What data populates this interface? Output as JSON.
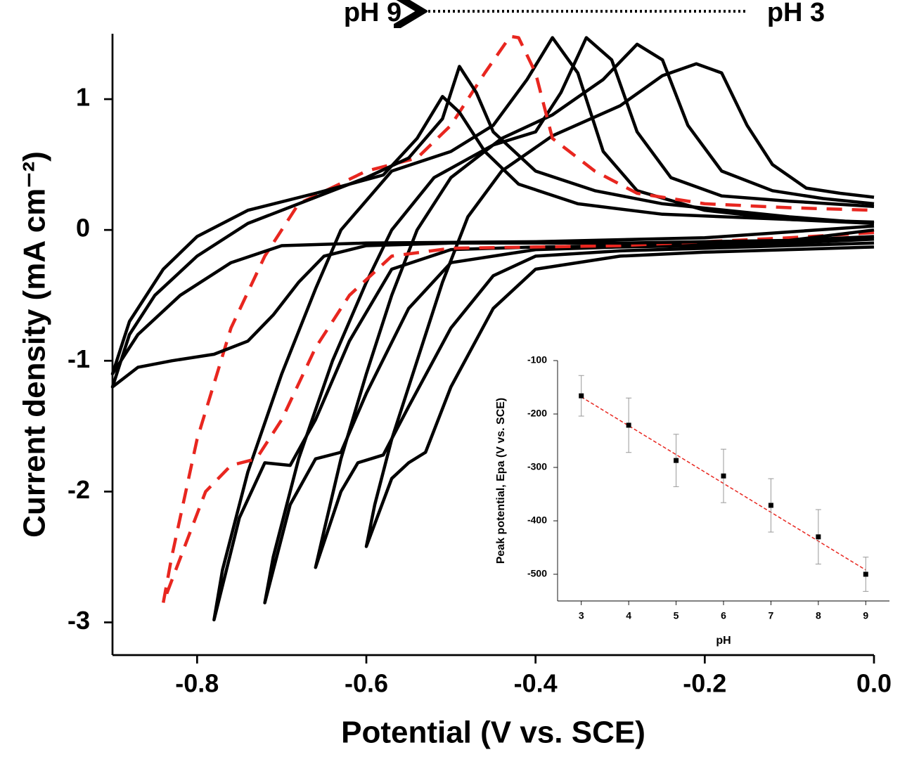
{
  "chart_data": [
    {
      "type": "line",
      "xlabel": "Potential (V vs. SCE)",
      "ylabel": "Current density (mA cm⁻²)",
      "annotations": [
        "pH 9",
        "pH 3"
      ],
      "xlim": [
        -0.9,
        0.0
      ],
      "ylim": [
        -3.25,
        1.5
      ],
      "xticks": [
        -0.8,
        -0.6,
        -0.4,
        -0.2,
        {
          "value": 0,
          "label": "0.0"
        }
      ],
      "yticks": [
        -3,
        -2,
        -1,
        0,
        1
      ],
      "series": [
        {
          "color": "#000000",
          "line_style": "solid",
          "x": [
            0,
            -0.1,
            -0.2,
            -0.3,
            -0.4,
            -0.45,
            -0.5,
            -0.53,
            -0.55,
            -0.57,
            -0.6,
            -0.59,
            -0.57,
            -0.54,
            -0.51,
            -0.48,
            -0.44,
            -0.38,
            -0.3,
            -0.25,
            -0.21,
            -0.18,
            -0.15,
            -0.12,
            -0.08,
            -0.04,
            0
          ],
          "values": [
            -0.13,
            -0.15,
            -0.17,
            -0.2,
            -0.3,
            -0.6,
            -1.2,
            -1.7,
            -1.78,
            -1.9,
            -2.42,
            -2.1,
            -1.6,
            -1.0,
            -0.4,
            0.1,
            0.45,
            0.72,
            0.95,
            1.18,
            1.27,
            1.2,
            0.8,
            0.5,
            0.32,
            0.28,
            0.25
          ]
        },
        {
          "color": "#000000",
          "line_style": "solid",
          "x": [
            0,
            -0.1,
            -0.2,
            -0.3,
            -0.4,
            -0.45,
            -0.5,
            -0.55,
            -0.58,
            -0.61,
            -0.63,
            -0.66,
            -0.65,
            -0.63,
            -0.6,
            -0.57,
            -0.54,
            -0.5,
            -0.44,
            -0.38,
            -0.32,
            -0.28,
            -0.25,
            -0.22,
            -0.18,
            -0.12,
            -0.06,
            0
          ],
          "values": [
            -0.1,
            -0.12,
            -0.14,
            -0.16,
            -0.2,
            -0.35,
            -0.75,
            -1.35,
            -1.72,
            -1.78,
            -2.0,
            -2.58,
            -2.3,
            -1.75,
            -1.1,
            -0.5,
            0,
            0.4,
            0.7,
            0.88,
            1.15,
            1.42,
            1.3,
            0.8,
            0.45,
            0.3,
            0.24,
            0.2
          ]
        },
        {
          "color": "#000000",
          "line_style": "solid",
          "x": [
            0,
            -0.1,
            -0.2,
            -0.3,
            -0.4,
            -0.5,
            -0.55,
            -0.6,
            -0.63,
            -0.66,
            -0.69,
            -0.72,
            -0.71,
            -0.68,
            -0.64,
            -0.6,
            -0.57,
            -0.52,
            -0.45,
            -0.4,
            -0.37,
            -0.34,
            -0.31,
            -0.28,
            -0.24,
            -0.18,
            -0.1,
            0
          ],
          "values": [
            -0.07,
            -0.1,
            -0.12,
            -0.13,
            -0.15,
            -0.25,
            -0.6,
            -1.25,
            -1.7,
            -1.75,
            -2.1,
            -2.85,
            -2.5,
            -1.75,
            -1.0,
            -0.4,
            0,
            0.4,
            0.65,
            0.75,
            1.05,
            1.47,
            1.3,
            0.75,
            0.4,
            0.26,
            0.22,
            0.18
          ]
        },
        {
          "color": "#000000",
          "line_style": "solid",
          "x": [
            0,
            -0.1,
            -0.2,
            -0.3,
            -0.4,
            -0.5,
            -0.57,
            -0.62,
            -0.66,
            -0.69,
            -0.72,
            -0.75,
            -0.78,
            -0.77,
            -0.74,
            -0.7,
            -0.66,
            -0.63,
            -0.57,
            -0.5,
            -0.45,
            -0.41,
            -0.38,
            -0.35,
            -0.32,
            -0.28,
            -0.2,
            -0.1,
            0
          ],
          "values": [
            -0.05,
            -0.08,
            -0.1,
            -0.12,
            -0.13,
            -0.15,
            -0.3,
            -0.85,
            -1.45,
            -1.8,
            -1.78,
            -2.2,
            -2.98,
            -2.6,
            -1.85,
            -1.1,
            -0.45,
            0,
            0.45,
            0.6,
            0.8,
            1.15,
            1.47,
            1.2,
            0.6,
            0.3,
            0.15,
            0.08,
            0.05
          ]
        },
        {
          "color": "#e8261f",
          "line_style": "dashed",
          "x": [
            0,
            -0.1,
            -0.2,
            -0.3,
            -0.4,
            -0.5,
            -0.57,
            -0.62,
            -0.66,
            -0.7,
            -0.73,
            -0.76,
            -0.79,
            -0.84,
            -0.83,
            -0.8,
            -0.76,
            -0.72,
            -0.68,
            -0.6,
            -0.54,
            -0.5,
            -0.46,
            -0.43,
            -0.42,
            -0.4,
            -0.38,
            -0.33,
            -0.28,
            -0.2,
            -0.1,
            0
          ],
          "values": [
            -0.02,
            -0.06,
            -0.09,
            -0.12,
            -0.13,
            -0.14,
            -0.2,
            -0.5,
            -0.9,
            -1.45,
            -1.75,
            -1.8,
            -2.0,
            -2.85,
            -2.5,
            -1.6,
            -0.75,
            -0.2,
            0.2,
            0.45,
            0.55,
            0.8,
            1.2,
            1.48,
            1.47,
            1.2,
            0.7,
            0.45,
            0.28,
            0.2,
            0.17,
            0.15
          ]
        },
        {
          "color": "#000000",
          "line_style": "solid",
          "x": [
            0,
            -0.1,
            -0.3,
            -0.5,
            -0.6,
            -0.65,
            -0.68,
            -0.71,
            -0.74,
            -0.78,
            -0.83,
            -0.87,
            -0.9,
            -0.88,
            -0.85,
            -0.8,
            -0.74,
            -0.66,
            -0.6,
            -0.55,
            -0.51,
            -0.49,
            -0.47,
            -0.45,
            -0.4,
            -0.33,
            -0.25,
            -0.1,
            0
          ],
          "values": [
            0,
            -0.08,
            -0.1,
            -0.1,
            -0.12,
            -0.2,
            -0.4,
            -0.65,
            -0.85,
            -0.95,
            -1.0,
            -1.05,
            -1.2,
            -0.8,
            -0.5,
            -0.2,
            0.05,
            0.25,
            0.4,
            0.55,
            0.85,
            1.25,
            1.05,
            0.75,
            0.45,
            0.3,
            0.2,
            0.1,
            0.05
          ]
        },
        {
          "color": "#000000",
          "line_style": "solid",
          "x": [
            0,
            -0.2,
            -0.4,
            -0.6,
            -0.7,
            -0.76,
            -0.82,
            -0.87,
            -0.9,
            -0.88,
            -0.84,
            -0.8,
            -0.74,
            -0.66,
            -0.58,
            -0.54,
            -0.51,
            -0.49,
            -0.46,
            -0.42,
            -0.35,
            -0.25,
            -0.1,
            0
          ],
          "values": [
            0.03,
            -0.06,
            -0.09,
            -0.1,
            -0.12,
            -0.25,
            -0.5,
            -0.8,
            -1.1,
            -0.7,
            -0.3,
            -0.05,
            0.15,
            0.28,
            0.42,
            0.7,
            1.02,
            0.9,
            0.6,
            0.35,
            0.2,
            0.12,
            0.08,
            0.06
          ]
        }
      ]
    },
    {
      "type": "scatter",
      "xlabel": "pH",
      "ylabel": "Peak potential, Epa (V vs. SCE)",
      "xlim": [
        2.5,
        9.5
      ],
      "ylim": [
        -550,
        -100
      ],
      "xticks": [
        3,
        4,
        5,
        6,
        7,
        8,
        9
      ],
      "yticks": [
        -100,
        -200,
        -300,
        -400,
        -500
      ],
      "series": [
        {
          "color": "#000000",
          "x": [
            3,
            4,
            5,
            6,
            7,
            8,
            9
          ],
          "values": [
            -166,
            -221,
            -287,
            -316,
            -371,
            -430,
            -500
          ],
          "errors": [
            38,
            51,
            49,
            50,
            50,
            51,
            32
          ]
        }
      ],
      "fit": {
        "color": "#e8261f",
        "x": [
          3,
          9
        ],
        "values": [
          -168,
          -492
        ]
      }
    }
  ]
}
